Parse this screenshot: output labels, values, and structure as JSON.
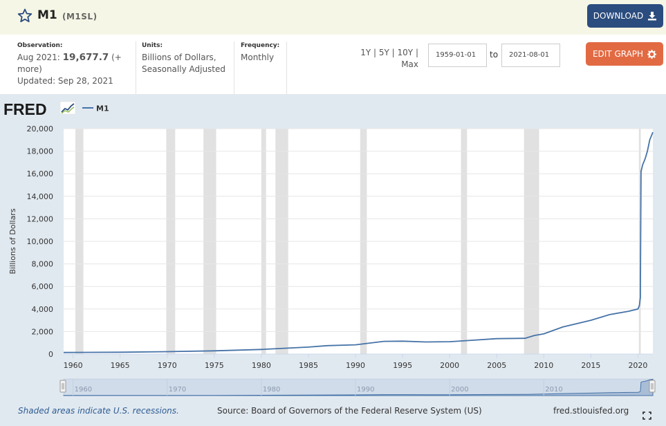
{
  "header": {
    "title": "M1",
    "series_id": "(M1SL)",
    "download_label": "DOWNLOAD"
  },
  "meta": {
    "observation_label": "Observation:",
    "observation_date": "Aug 2021:",
    "observation_value": "19,677.7",
    "observation_more": "(+ more)",
    "updated": "Updated: Sep 28, 2021",
    "units_label": "Units:",
    "units_line1": "Billions of Dollars,",
    "units_line2": "Seasonally Adjusted",
    "frequency_label": "Frequency:",
    "frequency_value": "Monthly"
  },
  "controls": {
    "range_1y": "1Y",
    "range_5y": "5Y",
    "range_10y": "10Y",
    "range_max": "Max",
    "start_date": "1959-01-01",
    "to_label": "to",
    "end_date": "2021-08-01",
    "edit_label": "EDIT GRAPH"
  },
  "colors": {
    "line": "#4572a7",
    "recession": "#e1e1e1",
    "panel_bg": "#e1e9f0",
    "download_btn": "#2b4c7e",
    "edit_btn": "#e26a43"
  },
  "chart_data": {
    "type": "line",
    "logo_text": "FRED",
    "legend": [
      "M1"
    ],
    "ylabel": "Billions of Dollars",
    "xlabel": "",
    "xlim": [
      1959.0,
      2021.583
    ],
    "ylim": [
      0,
      20000
    ],
    "yticks": [
      0,
      2000,
      4000,
      6000,
      8000,
      10000,
      12000,
      14000,
      16000,
      18000,
      20000
    ],
    "yticklabels": [
      "0",
      "2,000",
      "4,000",
      "6,000",
      "8,000",
      "10,000",
      "12,000",
      "14,000",
      "16,000",
      "18,000",
      "20,000"
    ],
    "xticks": [
      1960,
      1965,
      1970,
      1975,
      1980,
      1985,
      1990,
      1995,
      2000,
      2005,
      2010,
      2015,
      2020
    ],
    "navigator_ticks": [
      1960,
      1970,
      1980,
      1990,
      2000,
      2010
    ],
    "recessions": [
      [
        1960.25,
        1961.1
      ],
      [
        1969.9,
        1970.85
      ],
      [
        1973.85,
        1975.2
      ],
      [
        1980.0,
        1980.5
      ],
      [
        1981.5,
        1982.85
      ],
      [
        1990.5,
        1991.2
      ],
      [
        2001.2,
        2001.85
      ],
      [
        2007.9,
        2009.5
      ],
      [
        2020.1,
        2020.3
      ]
    ],
    "series": [
      {
        "name": "M1",
        "x": [
          1959.0,
          1965.0,
          1970.0,
          1975.0,
          1980.0,
          1985.0,
          1987.0,
          1990.0,
          1993.0,
          1995.0,
          1997.5,
          2000.0,
          2002.0,
          2005.0,
          2008.0,
          2009.0,
          2010.0,
          2012.0,
          2015.0,
          2017.0,
          2019.0,
          2020.0,
          2020.15,
          2020.25,
          2020.33,
          2020.5,
          2020.75,
          2021.0,
          2021.25,
          2021.583
        ],
        "y": [
          139,
          168,
          214,
          288,
          408,
          620,
          750,
          825,
          1130,
          1150,
          1075,
          1100,
          1200,
          1370,
          1400,
          1650,
          1800,
          2400,
          3000,
          3500,
          3800,
          4000,
          4300,
          5000,
          16200,
          16800,
          17300,
          18000,
          19000,
          19678
        ]
      }
    ]
  },
  "footer": {
    "recession_note": "Shaded areas indicate U.S. recessions.",
    "source": "Source: Board of Governors of the Federal Reserve System (US)",
    "site": "fred.stlouisfed.org"
  }
}
